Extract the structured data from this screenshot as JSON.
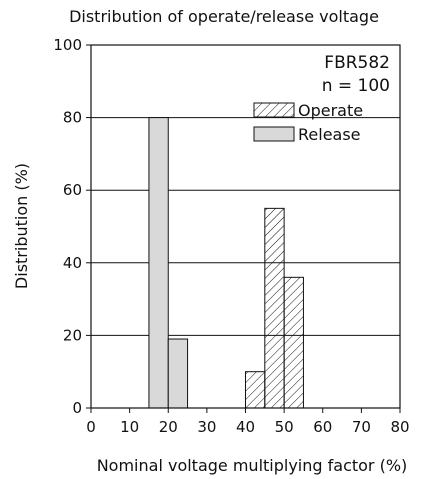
{
  "chart_data": {
    "type": "bar",
    "title": "Distribution of operate/release voltage",
    "annotation_lines": [
      "FBR582",
      "n = 100"
    ],
    "xlabel": "Nominal voltage multiplying factor (%)",
    "ylabel": "Distribution  (%)",
    "xlim": [
      0,
      80
    ],
    "ylim": [
      0,
      100
    ],
    "xticks": [
      0,
      10,
      20,
      30,
      40,
      50,
      60,
      70,
      80
    ],
    "yticks": [
      0,
      20,
      40,
      60,
      80,
      100
    ],
    "grid_y": true,
    "legend_position": "top-right",
    "series": [
      {
        "name": "Operate",
        "pattern": "hatched",
        "bins": [
          {
            "x0": 40,
            "x1": 45,
            "value": 10
          },
          {
            "x0": 45,
            "x1": 50,
            "value": 55
          },
          {
            "x0": 50,
            "x1": 55,
            "value": 36
          }
        ]
      },
      {
        "name": "Release",
        "pattern": "solid",
        "color": "#d9d9d9",
        "bins": [
          {
            "x0": 15,
            "x1": 20,
            "value": 80
          },
          {
            "x0": 20,
            "x1": 25,
            "value": 19
          }
        ]
      }
    ]
  }
}
